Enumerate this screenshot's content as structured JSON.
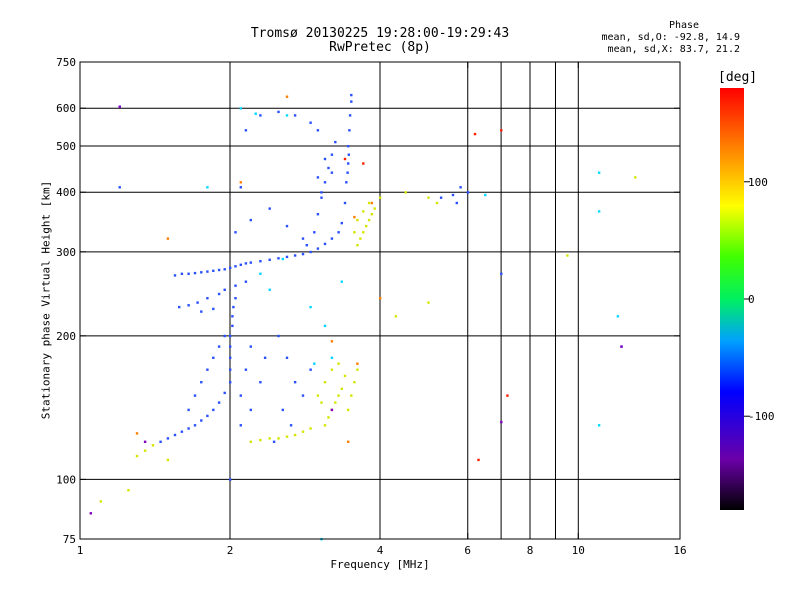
{
  "chart_data": {
    "type": "scatter",
    "title": "Tromsø 20130225 19:28:00-19:29:43",
    "subtitle": "RwPretec (8p)",
    "phase_box": {
      "header": "Phase",
      "line1": "mean, sd,O: -92.8, 14.9",
      "line2": "mean, sd,X:  83.7, 21.2"
    },
    "xlabel": "Frequency [MHz]",
    "ylabel": "Stationary phase Virtual Height [km]",
    "xscale": "log",
    "yscale": "log",
    "xlim": [
      1,
      16
    ],
    "ylim": [
      75,
      750
    ],
    "xticks": [
      1,
      2,
      4,
      6,
      8,
      10,
      16
    ],
    "xtick_labels": [
      "1",
      "2",
      "4",
      "6",
      "8",
      "10",
      "16"
    ],
    "xgrid": [
      2,
      4,
      6,
      7,
      8,
      9,
      10,
      16
    ],
    "yticks": [
      75,
      100,
      200,
      300,
      400,
      500,
      600,
      750
    ],
    "ytick_labels": [
      "75",
      "100",
      "200",
      "300",
      "400",
      "500",
      "600",
      "750"
    ],
    "ygrid": [
      100,
      200,
      300,
      400,
      500,
      600
    ],
    "grid": true,
    "colorbar": {
      "label": "[deg]",
      "range": [
        -180,
        180
      ],
      "ticks": [
        -100,
        0,
        100
      ],
      "tick_labels": [
        "-100",
        "0",
        "100"
      ]
    },
    "series": [
      {
        "color": "#2a50ff",
        "phase_approx": -95,
        "points": [
          [
            1.55,
            268
          ],
          [
            1.6,
            270
          ],
          [
            1.65,
            270
          ],
          [
            1.7,
            271
          ],
          [
            1.75,
            272
          ],
          [
            1.8,
            273
          ],
          [
            1.85,
            274
          ],
          [
            1.9,
            275
          ],
          [
            1.95,
            276
          ],
          [
            2.0,
            278
          ],
          [
            2.05,
            280
          ],
          [
            2.1,
            282
          ],
          [
            2.15,
            284
          ],
          [
            2.2,
            285
          ],
          [
            2.3,
            287
          ],
          [
            2.4,
            289
          ],
          [
            2.5,
            291
          ],
          [
            2.6,
            293
          ],
          [
            2.7,
            295
          ],
          [
            2.8,
            297
          ],
          [
            2.9,
            300
          ],
          [
            3.0,
            305
          ],
          [
            3.1,
            312
          ],
          [
            3.2,
            320
          ],
          [
            3.3,
            330
          ],
          [
            3.35,
            345
          ],
          [
            2.85,
            310
          ],
          [
            2.95,
            330
          ],
          [
            3.0,
            360
          ],
          [
            3.05,
            390
          ],
          [
            3.1,
            420
          ],
          [
            3.15,
            450
          ],
          [
            3.2,
            480
          ],
          [
            3.25,
            510
          ],
          [
            3.1,
            470
          ],
          [
            3.0,
            430
          ],
          [
            3.05,
            400
          ],
          [
            3.2,
            440
          ],
          [
            3.4,
            380
          ],
          [
            3.42,
            420
          ],
          [
            3.45,
            460
          ],
          [
            3.45,
            500
          ],
          [
            3.47,
            540
          ],
          [
            3.48,
            580
          ],
          [
            3.5,
            620
          ],
          [
            3.5,
            640
          ],
          [
            3.44,
            440
          ],
          [
            3.46,
            480
          ],
          [
            1.45,
            120
          ],
          [
            1.5,
            122
          ],
          [
            1.55,
            124
          ],
          [
            1.6,
            126
          ],
          [
            1.65,
            128
          ],
          [
            1.7,
            130
          ],
          [
            1.75,
            133
          ],
          [
            1.8,
            136
          ],
          [
            1.85,
            140
          ],
          [
            1.9,
            145
          ],
          [
            1.95,
            152
          ],
          [
            2.0,
            160
          ],
          [
            2.0,
            170
          ],
          [
            2.0,
            180
          ],
          [
            2.0,
            190
          ],
          [
            2.0,
            200
          ],
          [
            2.02,
            210
          ],
          [
            2.02,
            220
          ],
          [
            2.03,
            230
          ],
          [
            2.05,
            240
          ],
          [
            1.7,
            150
          ],
          [
            1.75,
            160
          ],
          [
            1.8,
            170
          ],
          [
            1.85,
            180
          ],
          [
            1.9,
            190
          ],
          [
            1.95,
            200
          ],
          [
            1.65,
            140
          ],
          [
            2.1,
            150
          ],
          [
            2.15,
            170
          ],
          [
            2.2,
            190
          ],
          [
            2.1,
            130
          ],
          [
            2.2,
            140
          ],
          [
            2.3,
            160
          ],
          [
            2.35,
            180
          ],
          [
            2.5,
            200
          ],
          [
            2.6,
            180
          ],
          [
            2.7,
            160
          ],
          [
            2.8,
            150
          ],
          [
            2.9,
            170
          ],
          [
            2.55,
            140
          ],
          [
            2.65,
            130
          ],
          [
            2.45,
            120
          ],
          [
            1.58,
            230
          ],
          [
            1.65,
            232
          ],
          [
            1.72,
            235
          ],
          [
            1.8,
            240
          ],
          [
            1.9,
            245
          ],
          [
            1.95,
            250
          ],
          [
            2.05,
            255
          ],
          [
            2.15,
            260
          ],
          [
            1.75,
            225
          ],
          [
            1.85,
            228
          ],
          [
            2.1,
            410
          ],
          [
            2.15,
            540
          ],
          [
            2.3,
            580
          ],
          [
            2.5,
            590
          ],
          [
            2.7,
            580
          ],
          [
            2.9,
            560
          ],
          [
            3.0,
            540
          ],
          [
            2.05,
            330
          ],
          [
            2.2,
            350
          ],
          [
            2.4,
            370
          ],
          [
            2.6,
            340
          ],
          [
            2.8,
            320
          ],
          [
            5.3,
            390
          ],
          [
            5.6,
            395
          ],
          [
            5.8,
            410
          ],
          [
            6.0,
            400
          ],
          [
            5.7,
            380
          ],
          [
            1.2,
            605
          ],
          [
            1.2,
            410
          ],
          [
            7.0,
            270
          ],
          [
            12.2,
            190
          ],
          [
            2.0,
            100
          ]
        ]
      },
      {
        "color": "#d4e600",
        "phase_approx": 90,
        "points": [
          [
            3.6,
            310
          ],
          [
            3.65,
            320
          ],
          [
            3.7,
            330
          ],
          [
            3.75,
            340
          ],
          [
            3.8,
            350
          ],
          [
            3.85,
            360
          ],
          [
            3.9,
            370
          ],
          [
            3.55,
            330
          ],
          [
            3.6,
            350
          ],
          [
            3.7,
            365
          ],
          [
            3.8,
            380
          ],
          [
            3.1,
            130
          ],
          [
            3.15,
            135
          ],
          [
            3.2,
            140
          ],
          [
            3.25,
            145
          ],
          [
            3.3,
            150
          ],
          [
            3.35,
            155
          ],
          [
            3.1,
            160
          ],
          [
            3.2,
            170
          ],
          [
            3.3,
            175
          ],
          [
            3.4,
            165
          ],
          [
            3.5,
            150
          ],
          [
            3.55,
            160
          ],
          [
            3.6,
            170
          ],
          [
            3.45,
            140
          ],
          [
            3.0,
            150
          ],
          [
            3.05,
            145
          ],
          [
            2.2,
            120
          ],
          [
            2.3,
            121
          ],
          [
            2.4,
            122
          ],
          [
            2.5,
            122
          ],
          [
            2.6,
            123
          ],
          [
            2.7,
            124
          ],
          [
            2.8,
            126
          ],
          [
            2.9,
            128
          ],
          [
            1.35,
            115
          ],
          [
            1.4,
            118
          ],
          [
            1.3,
            112
          ],
          [
            4.0,
            390
          ],
          [
            4.5,
            400
          ],
          [
            5.0,
            390
          ],
          [
            5.2,
            380
          ],
          [
            9.5,
            295
          ],
          [
            5.0,
            235
          ],
          [
            4.3,
            220
          ],
          [
            1.1,
            90
          ],
          [
            1.25,
            95
          ],
          [
            1.5,
            110
          ],
          [
            13.0,
            430
          ]
        ]
      },
      {
        "color": "#00d8ff",
        "phase_approx": -40,
        "points": [
          [
            2.1,
            600
          ],
          [
            2.25,
            585
          ],
          [
            2.6,
            580
          ],
          [
            2.9,
            230
          ],
          [
            3.1,
            210
          ],
          [
            2.95,
            175
          ],
          [
            3.2,
            180
          ],
          [
            2.3,
            270
          ],
          [
            2.4,
            250
          ],
          [
            3.35,
            260
          ],
          [
            6.5,
            395
          ],
          [
            11.0,
            440
          ],
          [
            12.0,
            220
          ],
          [
            11.0,
            365
          ],
          [
            11.0,
            130
          ],
          [
            3.05,
            75
          ],
          [
            1.8,
            410
          ],
          [
            2.55,
            290
          ]
        ]
      },
      {
        "color": "#ff8000",
        "phase_approx": 150,
        "points": [
          [
            3.55,
            355
          ],
          [
            3.6,
            175
          ],
          [
            3.45,
            120
          ],
          [
            3.2,
            195
          ],
          [
            2.6,
            635
          ],
          [
            2.1,
            420
          ],
          [
            1.5,
            320
          ],
          [
            3.85,
            380
          ],
          [
            4.0,
            240
          ],
          [
            1.3,
            125
          ]
        ]
      },
      {
        "color": "#ff2000",
        "phase_approx": 175,
        "points": [
          [
            6.2,
            530
          ],
          [
            7.0,
            540
          ],
          [
            6.3,
            110
          ],
          [
            7.2,
            150
          ],
          [
            3.4,
            470
          ],
          [
            3.7,
            460
          ]
        ]
      },
      {
        "color": "#8000c0",
        "phase_approx": -150,
        "points": [
          [
            1.2,
            605
          ],
          [
            7.0,
            132
          ],
          [
            12.2,
            190
          ],
          [
            1.05,
            85
          ],
          [
            1.35,
            120
          ],
          [
            3.2,
            140
          ]
        ]
      }
    ]
  }
}
